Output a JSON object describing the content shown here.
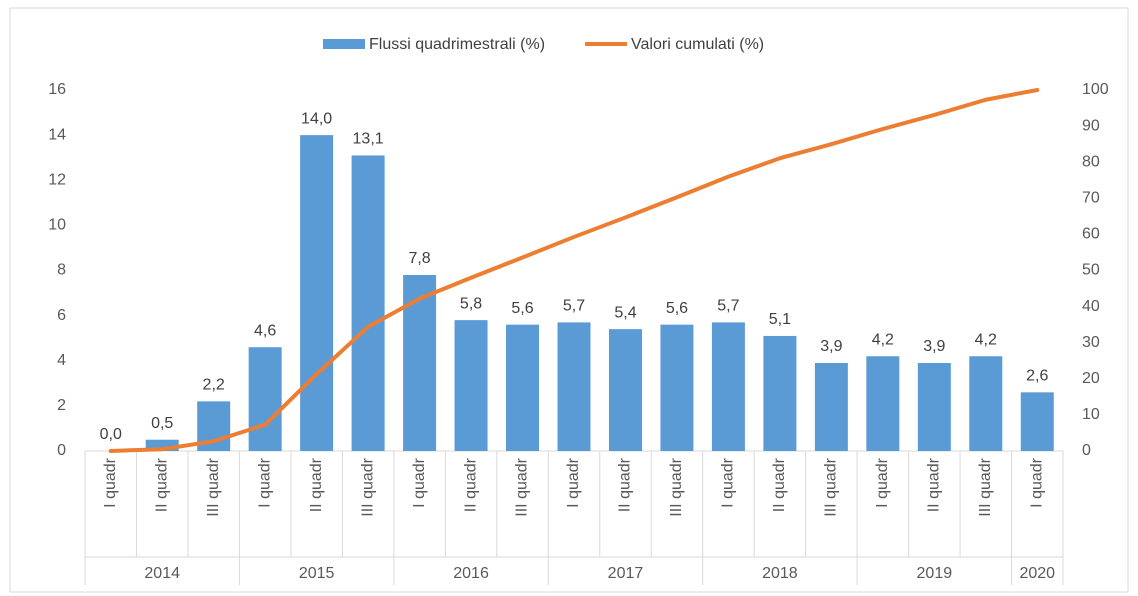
{
  "chart_data": {
    "type": "bar_line",
    "groups": [
      {
        "name": "2014",
        "categories": [
          "I quadr",
          "II quadr",
          "III quadr"
        ]
      },
      {
        "name": "2015",
        "categories": [
          "I quadr",
          "II quadr",
          "III quadr"
        ]
      },
      {
        "name": "2016",
        "categories": [
          "I quadr",
          "II quadr",
          "III quadr"
        ]
      },
      {
        "name": "2017",
        "categories": [
          "I quadr",
          "II quadr",
          "III quadr"
        ]
      },
      {
        "name": "2018",
        "categories": [
          "I quadr",
          "II quadr",
          "III quadr"
        ]
      },
      {
        "name": "2019",
        "categories": [
          "I quadr",
          "II quadr",
          "III quadr"
        ]
      },
      {
        "name": "2020",
        "categories": [
          "I quadr"
        ]
      }
    ],
    "series": [
      {
        "name": "Flussi quadrimestrali (%)",
        "color": "#5b9bd5",
        "type": "bar",
        "values": [
          0.0,
          0.5,
          2.2,
          4.6,
          14.0,
          13.1,
          7.8,
          5.8,
          5.6,
          5.7,
          5.4,
          5.6,
          5.7,
          5.1,
          3.9,
          4.2,
          3.9,
          4.2,
          2.6
        ],
        "value_labels": [
          "0,0",
          "0,5",
          "2,2",
          "4,6",
          "14,0",
          "13,1",
          "7,8",
          "5,8",
          "5,6",
          "5,7",
          "5,4",
          "5,6",
          "5,7",
          "5,1",
          "3,9",
          "4,2",
          "3,9",
          "4,2",
          "2,6"
        ]
      },
      {
        "name": "Valori cumulati (%)",
        "color": "#ed7d31",
        "type": "line",
        "axis": "y2",
        "values": [
          0.0,
          0.5,
          2.7,
          7.3,
          21.3,
          34.4,
          42.2,
          48.0,
          53.6,
          59.3,
          64.7,
          70.3,
          76.0,
          81.1,
          85.0,
          89.2,
          93.1,
          97.3,
          100
        ]
      }
    ],
    "ylim": [
      0,
      16
    ],
    "yticks": [
      0,
      2,
      4,
      6,
      8,
      10,
      12,
      14,
      16
    ],
    "y2lim": [
      0,
      100
    ],
    "y2ticks": [
      0,
      10,
      20,
      30,
      40,
      50,
      60,
      70,
      80,
      90,
      100
    ],
    "legend": "top"
  }
}
